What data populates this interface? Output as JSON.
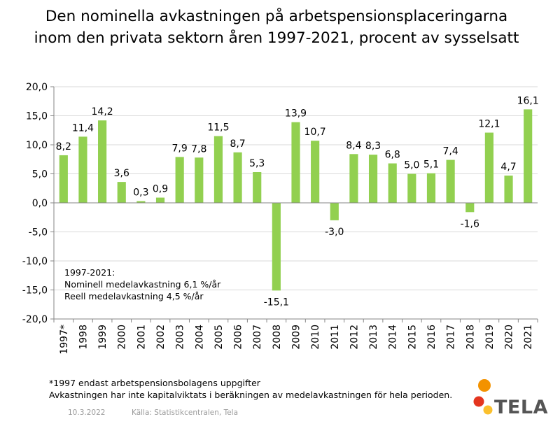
{
  "title_lines": [
    "Den nominella avkastningen på arbetspensionsplaceringarna",
    "inom den privata sektorn åren 1997-2021, procent av sysselsatt"
  ],
  "summary_lines": [
    "1997-2021:",
    "Nominell medelavkastning 6,1 %/år",
    "Reell medelavkastning 4,5 %/år"
  ],
  "footnotes": [
    "*1997 endast arbetspensionsbolagens uppgifter",
    "Avkastningen har inte kapitalviktats i beräkningen av medelavkastningen för hela perioden."
  ],
  "date": "10.3.2022",
  "source": "Källa: Statistikcentralen, Tela",
  "logo_text": "TELA",
  "colors": {
    "bar": "#92d050",
    "axis": "#868686",
    "grid": "#d9d9d9",
    "logo_orange": "#f39200",
    "logo_red": "#e4351f",
    "logo_yellow": "#fbc02d"
  },
  "chart_data": {
    "type": "bar",
    "title": "Den nominella avkastningen på arbetspensionsplaceringarna inom den privata sektorn åren 1997-2021, procent av sysselsatt",
    "categories": [
      "1997*",
      "1998",
      "1999",
      "2000",
      "2001",
      "2002",
      "2003",
      "2004",
      "2005",
      "2006",
      "2007",
      "2008",
      "2009",
      "2010",
      "2011",
      "2012",
      "2013",
      "2014",
      "2015",
      "2016",
      "2017",
      "2018",
      "2019",
      "2020",
      "2021"
    ],
    "values": [
      8.2,
      11.4,
      14.2,
      3.6,
      0.3,
      0.9,
      7.9,
      7.8,
      11.5,
      8.7,
      5.3,
      -15.1,
      13.9,
      10.7,
      -3.0,
      8.4,
      8.3,
      6.8,
      5.0,
      5.1,
      7.4,
      -1.6,
      12.1,
      4.7,
      16.1
    ],
    "value_labels": [
      "8,2",
      "11,4",
      "14,2",
      "3,6",
      "0,3",
      "0,9",
      "7,9",
      "7,8",
      "11,5",
      "8,7",
      "5,3",
      "-15,1",
      "13,9",
      "10,7",
      "-3,0",
      "8,4",
      "8,3",
      "6,8",
      "5,0",
      "5,1",
      "7,4",
      "-1,6",
      "12,1",
      "4,7",
      "16,1"
    ],
    "ylim": [
      -20,
      20
    ],
    "yticks": [
      -20,
      -15,
      -10,
      -5,
      0,
      5,
      10,
      15,
      20
    ],
    "ytick_labels": [
      "-20,0",
      "-15,0",
      "-10,0",
      "-5,0",
      "0,0",
      "5,0",
      "10,0",
      "15,0",
      "20,0"
    ],
    "xlabel": "",
    "ylabel": "",
    "grid": "horizontal",
    "legend": "none"
  }
}
